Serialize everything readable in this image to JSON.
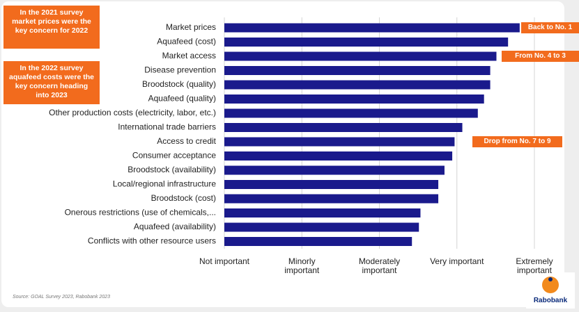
{
  "chart_data": {
    "type": "bar",
    "orientation": "horizontal",
    "categories": [
      "Market prices",
      "Aquafeed (cost)",
      "Market access",
      "Disease prevention",
      "Broodstock (quality)",
      "Aquafeed (quality)",
      "Other production costs (electricity, labor, etc.)",
      "International trade barriers",
      "Access to credit",
      "Consumer acceptance",
      "Broodstock (availability)",
      "Local/regional infrastructure",
      "Broodstock (cost)",
      "Onerous restrictions (use of chemicals,...",
      "Aquafeed (availability)",
      "Conflicts with other resource users"
    ],
    "values": [
      4.81,
      4.66,
      4.51,
      4.43,
      4.43,
      4.35,
      4.27,
      4.07,
      3.97,
      3.94,
      3.84,
      3.76,
      3.76,
      3.53,
      3.51,
      3.42
    ],
    "color": "#1a1a8c",
    "xlim": [
      1,
      5
    ],
    "xticks": [
      {
        "value": 1,
        "label": "Not important"
      },
      {
        "value": 2,
        "label": "Minorly important"
      },
      {
        "value": 3,
        "label": "Moderately important"
      },
      {
        "value": 4,
        "label": "Very important"
      },
      {
        "value": 5,
        "label": "Extremely important"
      }
    ],
    "grid": true,
    "annotations": [
      {
        "text": "Back to No. 1",
        "category": "Market prices"
      },
      {
        "text": "From No. 4 to 3",
        "category": "Market access"
      },
      {
        "text": "Drop from No. 7 to 9",
        "category": "Access to credit"
      }
    ],
    "notes": [
      "In the 2021 survey market prices were the key concern for 2022",
      "In the 2022 survey aquafeed costs were the key concern heading into 2023"
    ],
    "source": "Source: GOAL Survey 2023, Rabobank 2023",
    "logo": "Rabobank"
  }
}
